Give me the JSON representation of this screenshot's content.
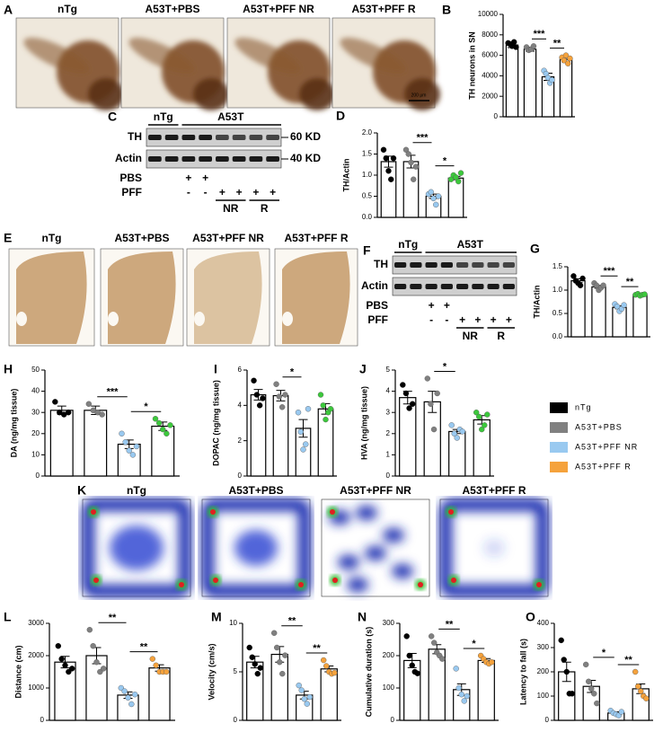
{
  "panel_A": {
    "panel": "A",
    "labels": [
      "nTg",
      "A53T+PBS",
      "A53T+PFF NR",
      "A53T+PFF R"
    ],
    "scale_bar": "200 μm"
  },
  "panel_C": {
    "panel": "C",
    "groups": [
      "nTg",
      "A53T"
    ],
    "rows": [
      "TH",
      "Actin"
    ],
    "markers": [
      "60 KD",
      "40 KD"
    ],
    "treatments": [
      {
        "name": "PBS",
        "signs": [
          "+",
          "+"
        ]
      },
      {
        "name": "PFF",
        "signs": [
          "-",
          "-",
          "+",
          "+",
          "+",
          "+"
        ]
      }
    ],
    "subgroups": [
      "NR",
      "R"
    ]
  },
  "panel_E": {
    "panel": "E",
    "labels": [
      "nTg",
      "A53T+PBS",
      "A53T+PFF NR",
      "A53T+PFF R"
    ]
  },
  "panel_F": {
    "panel": "F",
    "groups": [
      "nTg",
      "A53T"
    ],
    "rows": [
      "TH",
      "Actin"
    ],
    "treatments": [
      {
        "name": "PBS",
        "signs": [
          "+",
          "+"
        ]
      },
      {
        "name": "PFF",
        "signs": [
          "-",
          "-",
          "+",
          "+",
          "+",
          "+"
        ]
      }
    ],
    "subgroups": [
      "NR",
      "R"
    ]
  },
  "panel_K": {
    "panel": "K",
    "labels": [
      "nTg",
      "A53T+PBS",
      "A53T+PFF NR",
      "A53T+PFF R"
    ]
  },
  "legend": [
    {
      "name": "nTg",
      "color": "#000000"
    },
    {
      "name": "A53T+PBS",
      "color": "#808080"
    },
    {
      "name": "A53T+PFF NR",
      "color": "#99c9f0"
    },
    {
      "name": "A53T+PFF R",
      "color": "#f5a23c"
    }
  ],
  "chart_data": [
    {
      "type": "bar",
      "panel": "B",
      "y_label": "TH neurons in SN",
      "categories": [
        null,
        null,
        null,
        null
      ],
      "values": [
        7000,
        6600,
        3900,
        5600
      ],
      "errors": [
        250,
        200,
        350,
        250
      ],
      "points": [
        [
          7200,
          7100,
          6900,
          7300,
          6800
        ],
        [
          6800,
          6500,
          6600,
          6900
        ],
        [
          4500,
          4200,
          3800,
          3300,
          3600
        ],
        [
          5800,
          5500,
          6000,
          5200,
          5700
        ]
      ],
      "colors": [
        "#000000",
        "#808080",
        "#99c9f0",
        "#f5a23c"
      ],
      "bar_color": "#ffffff",
      "ylim": [
        0,
        10000
      ],
      "yticks": [
        0,
        2000,
        4000,
        6000,
        8000,
        10000
      ],
      "annotations": [
        {
          "text": "***",
          "between": [
            1,
            2
          ]
        },
        {
          "text": "**",
          "between": [
            2,
            3
          ]
        }
      ]
    },
    {
      "type": "bar",
      "panel": "D",
      "y_label": "TH/Actin",
      "categories": [
        null,
        null,
        null,
        null
      ],
      "values": [
        1.32,
        1.32,
        0.5,
        0.93
      ],
      "errors": [
        0.13,
        0.15,
        0.05,
        0.04
      ],
      "points": [
        [
          1.6,
          1.4,
          1.1,
          0.9,
          1.4
        ],
        [
          1.6,
          1.5,
          1.3,
          0.9,
          1.2
        ],
        [
          0.55,
          0.6,
          0.45,
          0.3,
          0.5
        ],
        [
          0.9,
          1.0,
          0.95,
          0.85,
          1.05
        ]
      ],
      "colors": [
        "#000000",
        "#808080",
        "#99c9f0",
        "#3cc83c"
      ],
      "bar_color": "#ffffff",
      "ylim": [
        0,
        2
      ],
      "yticks": [
        {
          "value": 0,
          "label": "0.0"
        },
        0.5,
        {
          "value": 1,
          "label": "1.0"
        },
        1.5,
        {
          "value": 2,
          "label": "2.0"
        }
      ],
      "annotations": [
        {
          "text": "***",
          "between": [
            1,
            2
          ]
        },
        {
          "text": "*",
          "between": [
            2,
            3
          ]
        }
      ]
    },
    {
      "type": "bar",
      "panel": "G",
      "y_label": "TH/Actin",
      "categories": [
        null,
        null,
        null,
        null
      ],
      "values": [
        1.2,
        1.07,
        0.63,
        0.9
      ],
      "errors": [
        0.04,
        0.03,
        0.03,
        0.01
      ],
      "points": [
        [
          1.3,
          1.2,
          1.15,
          1.1,
          1.25
        ],
        [
          1.15,
          1.1,
          1.0,
          1.05,
          1.1
        ],
        [
          0.7,
          0.65,
          0.55,
          0.6,
          0.68
        ],
        [
          0.9,
          0.92,
          0.88,
          0.9,
          0.91
        ]
      ],
      "colors": [
        "#000000",
        "#808080",
        "#99c9f0",
        "#3cc83c"
      ],
      "bar_color": "#ffffff",
      "ylim": [
        0,
        1.5
      ],
      "yticks": [
        {
          "value": 0,
          "label": "0.0"
        },
        0.5,
        {
          "value": 1,
          "label": "1.0"
        },
        1.5
      ],
      "annotations": [
        {
          "text": "***",
          "between": [
            1,
            2
          ]
        },
        {
          "text": "**",
          "between": [
            2,
            3
          ]
        }
      ]
    },
    {
      "type": "bar",
      "panel": "H",
      "y_label": "DA (ng/mg tissue)",
      "categories": [
        null,
        null,
        null,
        null
      ],
      "values": [
        31,
        31,
        15,
        23.5
      ],
      "errors": [
        2,
        2,
        2,
        2
      ],
      "points": [
        [
          35,
          30,
          29,
          30
        ],
        [
          34,
          31,
          30,
          29
        ],
        [
          20,
          16,
          12,
          10,
          14
        ],
        [
          27,
          25,
          22,
          20,
          24
        ]
      ],
      "colors": [
        "#000000",
        "#808080",
        "#99c9f0",
        "#3cc83c"
      ],
      "bar_color": "#ffffff",
      "ylim": [
        0,
        50
      ],
      "yticks": [
        0,
        10,
        20,
        30,
        40,
        50
      ],
      "annotations": [
        {
          "text": "***",
          "between": [
            1,
            2
          ]
        },
        {
          "text": "*",
          "between": [
            2,
            3
          ]
        }
      ]
    },
    {
      "type": "bar",
      "panel": "I",
      "y_label": "DOPAC (ng/mg tissue)",
      "categories": [
        null,
        null,
        null,
        null
      ],
      "values": [
        4.6,
        4.55,
        2.7,
        3.8
      ],
      "errors": [
        0.3,
        0.3,
        0.5,
        0.3
      ],
      "points": [
        [
          5.4,
          4.6,
          4.0,
          4.4
        ],
        [
          5.2,
          4.5,
          3.9,
          4.6
        ],
        [
          3.6,
          2.5,
          1.5,
          1.8,
          3.8
        ],
        [
          4.6,
          4.0,
          3.2,
          3.6,
          3.8
        ]
      ],
      "colors": [
        "#000000",
        "#808080",
        "#99c9f0",
        "#3cc83c"
      ],
      "bar_color": "#ffffff",
      "ylim": [
        0,
        6
      ],
      "yticks": [
        0,
        2,
        4,
        6
      ],
      "annotations": [
        {
          "text": "*",
          "between": [
            1,
            2
          ]
        }
      ]
    },
    {
      "type": "bar",
      "panel": "J",
      "y_label": "HVA (ng/mg tissue)",
      "categories": [
        null,
        null,
        null,
        null
      ],
      "values": [
        3.7,
        3.5,
        2.1,
        2.65
      ],
      "errors": [
        0.3,
        0.5,
        0.1,
        0.2
      ],
      "points": [
        [
          4.3,
          3.9,
          3.2,
          3.4
        ],
        [
          4.6,
          3.4,
          2.2,
          3.9
        ],
        [
          2.4,
          2.0,
          1.8,
          2.2,
          2.1
        ],
        [
          3.0,
          2.8,
          2.2,
          2.4,
          2.9
        ]
      ],
      "colors": [
        "#000000",
        "#808080",
        "#99c9f0",
        "#3cc83c"
      ],
      "bar_color": "#ffffff",
      "ylim": [
        0,
        5
      ],
      "yticks": [
        0,
        1,
        2,
        3,
        4,
        5
      ],
      "annotations": [
        {
          "text": "*",
          "between": [
            1,
            2
          ]
        }
      ]
    },
    {
      "type": "bar",
      "panel": "L",
      "y_label": "Distance (cm)",
      "categories": [
        null,
        null,
        null,
        null
      ],
      "values": [
        1800,
        2000,
        780,
        1620
      ],
      "errors": [
        180,
        250,
        100,
        100
      ],
      "points": [
        [
          2300,
          1900,
          1700,
          1500,
          1600
        ],
        [
          2800,
          2300,
          1800,
          1500,
          1600
        ],
        [
          1000,
          900,
          700,
          500,
          800
        ],
        [
          1900,
          1700,
          1500,
          1500,
          1500
        ]
      ],
      "colors": [
        "#000000",
        "#808080",
        "#99c9f0",
        "#f5a23c"
      ],
      "bar_color": "#ffffff",
      "ylim": [
        0,
        3000
      ],
      "yticks": [
        0,
        1000,
        2000,
        3000
      ],
      "annotations": [
        {
          "text": "**",
          "between": [
            1,
            2
          ]
        },
        {
          "text": "**",
          "between": [
            2,
            3
          ]
        }
      ]
    },
    {
      "type": "bar",
      "panel": "M",
      "y_label": "Velocity (cm/s)",
      "categories": [
        null,
        null,
        null,
        null
      ],
      "values": [
        6,
        6.8,
        2.6,
        5.3
      ],
      "errors": [
        0.6,
        0.8,
        0.4,
        0.3
      ],
      "points": [
        [
          7.5,
          6.5,
          5.8,
          4.8,
          5.4
        ],
        [
          9,
          7.5,
          6,
          4.8,
          6.7
        ],
        [
          3.6,
          3.1,
          2.2,
          1.7,
          2.4
        ],
        [
          6.2,
          5.6,
          5,
          4.8,
          4.9
        ]
      ],
      "colors": [
        "#000000",
        "#808080",
        "#99c9f0",
        "#f5a23c"
      ],
      "bar_color": "#ffffff",
      "ylim": [
        0,
        10
      ],
      "yticks": [
        0,
        5,
        10
      ],
      "annotations": [
        {
          "text": "**",
          "between": [
            1,
            2
          ]
        },
        {
          "text": "**",
          "between": [
            2,
            3
          ]
        }
      ]
    },
    {
      "type": "bar",
      "panel": "N",
      "y_label": "Cumulative duration (s)",
      "categories": [
        null,
        null,
        null,
        null
      ],
      "values": [
        185,
        220,
        95,
        185
      ],
      "errors": [
        22,
        14,
        18,
        6
      ],
      "points": [
        [
          260,
          200,
          170,
          150,
          145
        ],
        [
          260,
          240,
          210,
          200,
          190
        ],
        [
          160,
          100,
          80,
          60,
          75
        ],
        [
          200,
          190,
          180,
          175,
          180
        ]
      ],
      "colors": [
        "#000000",
        "#808080",
        "#99c9f0",
        "#f5a23c"
      ],
      "bar_color": "#ffffff",
      "ylim": [
        0,
        300
      ],
      "yticks": [
        0,
        100,
        200,
        300
      ],
      "annotations": [
        {
          "text": "**",
          "between": [
            1,
            2
          ]
        },
        {
          "text": "*",
          "between": [
            2,
            3
          ]
        }
      ]
    },
    {
      "type": "bar",
      "panel": "O",
      "y_label": "Latency to fall (s)",
      "categories": [
        null,
        null,
        null,
        null
      ],
      "values": [
        200,
        140,
        30,
        130
      ],
      "errors": [
        40,
        25,
        5,
        20
      ],
      "points": [
        [
          330,
          250,
          200,
          110,
          110
        ],
        [
          230,
          160,
          130,
          110,
          70
        ],
        [
          40,
          30,
          25,
          20,
          35
        ],
        [
          200,
          140,
          120,
          100,
          90
        ]
      ],
      "colors": [
        "#000000",
        "#808080",
        "#99c9f0",
        "#f5a23c"
      ],
      "bar_color": "#ffffff",
      "ylim": [
        0,
        400
      ],
      "yticks": [
        0,
        100,
        200,
        300,
        400
      ],
      "annotations": [
        {
          "text": "*",
          "between": [
            1,
            2
          ]
        },
        {
          "text": "**",
          "between": [
            2,
            3
          ]
        }
      ]
    }
  ]
}
